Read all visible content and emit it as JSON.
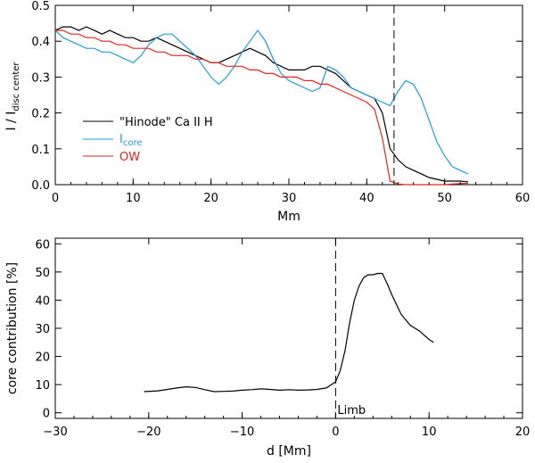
{
  "chart_data": [
    {
      "type": "line",
      "xlabel": "Mm",
      "ylabel_main": "I / I",
      "ylabel_sub": "disc center",
      "xlim": [
        0,
        60
      ],
      "ylim": [
        0,
        0.5
      ],
      "xticks": [
        "0",
        "10",
        "20",
        "30",
        "40",
        "50",
        "60"
      ],
      "yticks": [
        "0.0",
        "0.1",
        "0.2",
        "0.3",
        "0.4",
        "0.5"
      ],
      "vline_x": 43.5,
      "legend": [
        {
          "label": "\"Hinode\" Ca II H",
          "color": "#000000"
        },
        {
          "label": "I",
          "sub": "core",
          "color": "#1e9ed8"
        },
        {
          "label": "OW",
          "color": "#e8231f"
        }
      ],
      "series": [
        {
          "name": "\"Hinode\" Ca II H",
          "color": "#000000",
          "x": [
            0,
            1,
            2,
            3,
            4,
            5,
            6,
            7,
            8,
            9,
            10,
            11,
            12,
            13,
            14,
            15,
            16,
            17,
            18,
            19,
            20,
            21,
            22,
            23,
            24,
            25,
            26,
            27,
            28,
            29,
            30,
            31,
            32,
            33,
            34,
            35,
            36,
            37,
            38,
            39,
            40,
            41,
            42,
            43,
            44,
            45,
            46,
            47,
            48,
            49,
            50,
            51,
            52,
            53
          ],
          "y": [
            0.43,
            0.44,
            0.44,
            0.43,
            0.44,
            0.43,
            0.42,
            0.43,
            0.42,
            0.41,
            0.41,
            0.4,
            0.4,
            0.41,
            0.4,
            0.39,
            0.38,
            0.37,
            0.36,
            0.35,
            0.34,
            0.34,
            0.35,
            0.36,
            0.37,
            0.38,
            0.37,
            0.36,
            0.34,
            0.33,
            0.32,
            0.32,
            0.32,
            0.33,
            0.33,
            0.32,
            0.31,
            0.29,
            0.27,
            0.26,
            0.25,
            0.24,
            0.2,
            0.1,
            0.07,
            0.05,
            0.04,
            0.03,
            0.02,
            0.015,
            0.01,
            0.01,
            0.01,
            0.008
          ]
        },
        {
          "name": "I core",
          "color": "#1e9ed8",
          "x": [
            0,
            1,
            2,
            3,
            4,
            5,
            6,
            7,
            8,
            9,
            10,
            11,
            12,
            13,
            14,
            15,
            16,
            17,
            18,
            19,
            20,
            21,
            22,
            23,
            24,
            25,
            26,
            27,
            28,
            29,
            30,
            31,
            32,
            33,
            34,
            35,
            36,
            37,
            38,
            39,
            40,
            41,
            42,
            43,
            44,
            45,
            46,
            47,
            48,
            49,
            50,
            51,
            52,
            53
          ],
          "y": [
            0.43,
            0.41,
            0.4,
            0.39,
            0.38,
            0.38,
            0.37,
            0.37,
            0.36,
            0.35,
            0.34,
            0.36,
            0.39,
            0.41,
            0.42,
            0.42,
            0.4,
            0.38,
            0.36,
            0.33,
            0.3,
            0.28,
            0.3,
            0.33,
            0.37,
            0.4,
            0.43,
            0.4,
            0.35,
            0.31,
            0.29,
            0.28,
            0.27,
            0.26,
            0.27,
            0.33,
            0.32,
            0.3,
            0.27,
            0.26,
            0.25,
            0.24,
            0.23,
            0.22,
            0.26,
            0.29,
            0.28,
            0.24,
            0.18,
            0.12,
            0.08,
            0.05,
            0.04,
            0.03
          ]
        },
        {
          "name": "OW",
          "color": "#e8231f",
          "x": [
            0,
            1,
            2,
            3,
            4,
            5,
            6,
            7,
            8,
            9,
            10,
            11,
            12,
            13,
            14,
            15,
            16,
            17,
            18,
            19,
            20,
            21,
            22,
            23,
            24,
            25,
            26,
            27,
            28,
            29,
            30,
            31,
            32,
            33,
            34,
            35,
            36,
            37,
            38,
            39,
            40,
            41,
            42,
            43,
            44,
            45,
            46,
            47,
            48,
            49,
            50,
            51,
            52,
            53
          ],
          "y": [
            0.43,
            0.43,
            0.42,
            0.42,
            0.41,
            0.41,
            0.4,
            0.4,
            0.39,
            0.39,
            0.38,
            0.38,
            0.38,
            0.37,
            0.37,
            0.36,
            0.36,
            0.36,
            0.35,
            0.35,
            0.34,
            0.34,
            0.33,
            0.33,
            0.33,
            0.32,
            0.32,
            0.31,
            0.31,
            0.3,
            0.3,
            0.3,
            0.29,
            0.29,
            0.28,
            0.28,
            0.27,
            0.26,
            0.25,
            0.24,
            0.23,
            0.21,
            0.13,
            0.01,
            0.002,
            0,
            0,
            0,
            0,
            0,
            0,
            0.002,
            0.003,
            0.004
          ]
        }
      ]
    },
    {
      "type": "line",
      "xlabel": "d [Mm]",
      "ylabel": "core contribution [%]",
      "xlim": [
        -30,
        20
      ],
      "ylim": [
        -2,
        62
      ],
      "xticks": [
        "−30",
        "−20",
        "−10",
        "0",
        "10",
        "20"
      ],
      "xtick_values": [
        -30,
        -20,
        -10,
        0,
        10,
        20
      ],
      "yticks": [
        "0",
        "10",
        "20",
        "30",
        "40",
        "50",
        "60"
      ],
      "vline_x": 0,
      "annotation": "Limb",
      "series": [
        {
          "name": "core contribution",
          "color": "#000000",
          "x": [
            -20.5,
            -19,
            -18,
            -17,
            -16,
            -15,
            -14,
            -13,
            -12,
            -11,
            -10,
            -9,
            -8,
            -7,
            -6,
            -5,
            -4,
            -3,
            -2,
            -1,
            0,
            0.5,
            1,
            1.5,
            2,
            2.5,
            3,
            3.5,
            4,
            4.5,
            5,
            5.5,
            6,
            7,
            8,
            9,
            10,
            10.5
          ],
          "y": [
            7.5,
            7.8,
            8.3,
            8.8,
            9.2,
            9.0,
            8.2,
            7.5,
            7.6,
            7.7,
            8.0,
            8.2,
            8.5,
            8.3,
            8.0,
            8.2,
            8.0,
            8.1,
            8.3,
            8.8,
            11,
            15,
            22,
            32,
            40,
            45,
            48,
            49,
            49,
            49.5,
            49.5,
            46,
            42,
            35,
            31,
            29,
            26,
            25
          ]
        }
      ]
    }
  ]
}
